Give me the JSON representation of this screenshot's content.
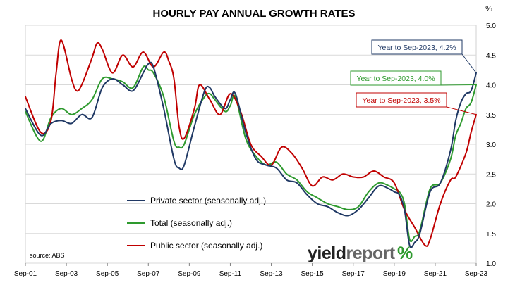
{
  "chart_data": {
    "type": "line",
    "title": "HOURLY PAY ANNUAL GROWTH RATES",
    "y_unit_label": "%",
    "ylim": [
      1.0,
      5.0
    ],
    "y_ticks": [
      "1.0",
      "1.5",
      "2.0",
      "2.5",
      "3.0",
      "3.5",
      "4.0",
      "4.5",
      "5.0"
    ],
    "x_range": [
      "2001-09",
      "2023-09"
    ],
    "x_ticks": [
      "Sep-01",
      "Sep-03",
      "Sep-05",
      "Sep-07",
      "Sep-09",
      "Sep-11",
      "Sep-13",
      "Sep-15",
      "Sep-17",
      "Sep-19",
      "Sep-21",
      "Sep-23"
    ],
    "grid": true,
    "legend_position": "bottom-center",
    "series": [
      {
        "name": "Private sector (seasonally adj.)",
        "color": "#1f3864",
        "points": [
          [
            "2001-09",
            3.6
          ],
          [
            "2002-06",
            3.15
          ],
          [
            "2002-12",
            3.35
          ],
          [
            "2003-06",
            3.4
          ],
          [
            "2003-12",
            3.35
          ],
          [
            "2004-06",
            3.5
          ],
          [
            "2004-12",
            3.45
          ],
          [
            "2005-06",
            3.95
          ],
          [
            "2005-12",
            4.1
          ],
          [
            "2006-06",
            4.0
          ],
          [
            "2006-12",
            3.9
          ],
          [
            "2007-06",
            4.2
          ],
          [
            "2007-09",
            4.35
          ],
          [
            "2007-12",
            4.3
          ],
          [
            "2008-06",
            3.6
          ],
          [
            "2008-12",
            2.75
          ],
          [
            "2009-03",
            2.6
          ],
          [
            "2009-06",
            2.65
          ],
          [
            "2009-12",
            3.3
          ],
          [
            "2010-06",
            3.9
          ],
          [
            "2010-09",
            3.95
          ],
          [
            "2010-12",
            3.8
          ],
          [
            "2011-06",
            3.6
          ],
          [
            "2011-09",
            3.75
          ],
          [
            "2011-12",
            3.85
          ],
          [
            "2012-06",
            3.2
          ],
          [
            "2012-12",
            2.75
          ],
          [
            "2013-06",
            2.65
          ],
          [
            "2013-12",
            2.6
          ],
          [
            "2014-06",
            2.4
          ],
          [
            "2014-12",
            2.35
          ],
          [
            "2015-06",
            2.15
          ],
          [
            "2015-12",
            2.0
          ],
          [
            "2016-06",
            1.95
          ],
          [
            "2016-12",
            1.85
          ],
          [
            "2017-06",
            1.8
          ],
          [
            "2017-12",
            1.9
          ],
          [
            "2018-06",
            2.1
          ],
          [
            "2018-12",
            2.3
          ],
          [
            "2019-06",
            2.25
          ],
          [
            "2019-09",
            2.2
          ],
          [
            "2019-12",
            2.15
          ],
          [
            "2020-03",
            1.9
          ],
          [
            "2020-06",
            1.3
          ],
          [
            "2020-09",
            1.35
          ],
          [
            "2020-12",
            1.5
          ],
          [
            "2021-06",
            2.2
          ],
          [
            "2021-12",
            2.35
          ],
          [
            "2022-06",
            2.9
          ],
          [
            "2022-09",
            3.4
          ],
          [
            "2022-12",
            3.7
          ],
          [
            "2023-03",
            3.85
          ],
          [
            "2023-06",
            3.9
          ],
          [
            "2023-09",
            4.2
          ]
        ]
      },
      {
        "name": "Total (seasonally adj.)",
        "color": "#2e9a2e",
        "points": [
          [
            "2001-09",
            3.55
          ],
          [
            "2002-06",
            3.05
          ],
          [
            "2002-12",
            3.45
          ],
          [
            "2003-06",
            3.6
          ],
          [
            "2003-12",
            3.5
          ],
          [
            "2004-06",
            3.6
          ],
          [
            "2004-12",
            3.75
          ],
          [
            "2005-06",
            4.1
          ],
          [
            "2005-12",
            4.1
          ],
          [
            "2006-06",
            4.05
          ],
          [
            "2006-12",
            3.95
          ],
          [
            "2007-06",
            4.3
          ],
          [
            "2007-09",
            4.25
          ],
          [
            "2007-12",
            4.2
          ],
          [
            "2008-06",
            3.8
          ],
          [
            "2008-12",
            3.05
          ],
          [
            "2009-03",
            2.95
          ],
          [
            "2009-06",
            3.0
          ],
          [
            "2009-12",
            3.5
          ],
          [
            "2010-06",
            3.8
          ],
          [
            "2010-09",
            3.85
          ],
          [
            "2010-12",
            3.75
          ],
          [
            "2011-06",
            3.55
          ],
          [
            "2011-09",
            3.65
          ],
          [
            "2011-12",
            3.8
          ],
          [
            "2012-06",
            3.1
          ],
          [
            "2012-12",
            2.8
          ],
          [
            "2013-06",
            2.65
          ],
          [
            "2013-12",
            2.7
          ],
          [
            "2014-06",
            2.5
          ],
          [
            "2014-12",
            2.4
          ],
          [
            "2015-06",
            2.2
          ],
          [
            "2015-12",
            2.1
          ],
          [
            "2016-06",
            2.0
          ],
          [
            "2016-12",
            1.95
          ],
          [
            "2017-06",
            1.9
          ],
          [
            "2017-12",
            1.95
          ],
          [
            "2018-06",
            2.2
          ],
          [
            "2018-12",
            2.35
          ],
          [
            "2019-06",
            2.3
          ],
          [
            "2019-09",
            2.25
          ],
          [
            "2019-12",
            2.2
          ],
          [
            "2020-03",
            2.0
          ],
          [
            "2020-06",
            1.4
          ],
          [
            "2020-09",
            1.45
          ],
          [
            "2020-12",
            1.55
          ],
          [
            "2021-06",
            2.25
          ],
          [
            "2021-12",
            2.35
          ],
          [
            "2022-06",
            2.75
          ],
          [
            "2022-09",
            3.15
          ],
          [
            "2022-12",
            3.35
          ],
          [
            "2023-03",
            3.6
          ],
          [
            "2023-06",
            3.7
          ],
          [
            "2023-09",
            4.0
          ]
        ]
      },
      {
        "name": "Public sector (seasonally adj.)",
        "color": "#c00000",
        "points": [
          [
            "2001-09",
            3.8
          ],
          [
            "2002-06",
            3.2
          ],
          [
            "2002-12",
            3.4
          ],
          [
            "2003-03",
            4.2
          ],
          [
            "2003-06",
            4.75
          ],
          [
            "2003-12",
            4.1
          ],
          [
            "2004-03",
            3.9
          ],
          [
            "2004-06",
            4.0
          ],
          [
            "2004-12",
            4.45
          ],
          [
            "2005-03",
            4.7
          ],
          [
            "2005-06",
            4.6
          ],
          [
            "2005-12",
            4.2
          ],
          [
            "2006-06",
            4.5
          ],
          [
            "2006-12",
            4.3
          ],
          [
            "2007-06",
            4.55
          ],
          [
            "2007-12",
            4.3
          ],
          [
            "2008-06",
            4.55
          ],
          [
            "2008-09",
            4.4
          ],
          [
            "2008-12",
            4.1
          ],
          [
            "2009-03",
            3.3
          ],
          [
            "2009-06",
            3.1
          ],
          [
            "2009-12",
            3.6
          ],
          [
            "2010-03",
            4.0
          ],
          [
            "2010-09",
            3.75
          ],
          [
            "2011-03",
            3.5
          ],
          [
            "2011-09",
            3.85
          ],
          [
            "2012-03",
            3.55
          ],
          [
            "2012-09",
            3.0
          ],
          [
            "2013-03",
            2.8
          ],
          [
            "2013-09",
            2.65
          ],
          [
            "2014-03",
            2.95
          ],
          [
            "2014-09",
            2.85
          ],
          [
            "2015-03",
            2.6
          ],
          [
            "2015-09",
            2.3
          ],
          [
            "2016-03",
            2.45
          ],
          [
            "2016-09",
            2.4
          ],
          [
            "2017-03",
            2.5
          ],
          [
            "2017-09",
            2.45
          ],
          [
            "2018-03",
            2.45
          ],
          [
            "2018-09",
            2.55
          ],
          [
            "2019-03",
            2.45
          ],
          [
            "2019-09",
            2.35
          ],
          [
            "2020-03",
            1.9
          ],
          [
            "2020-09",
            1.6
          ],
          [
            "2021-03",
            1.3
          ],
          [
            "2021-06",
            1.4
          ],
          [
            "2021-12",
            2.0
          ],
          [
            "2022-06",
            2.4
          ],
          [
            "2022-09",
            2.45
          ],
          [
            "2023-03",
            2.85
          ],
          [
            "2023-06",
            3.2
          ],
          [
            "2023-09",
            3.5
          ]
        ]
      }
    ],
    "annotations": [
      {
        "text": "Year to Sep-2023, 4.2%",
        "color": "#1f3864",
        "series": "Private sector (seasonally adj.)"
      },
      {
        "text": "Year to Sep-2023, 4.0%",
        "color": "#2e9a2e",
        "series": "Total (seasonally adj.)"
      },
      {
        "text": "Year to Sep-2023, 3.5%",
        "color": "#c00000",
        "series": "Public sector (seasonally adj.)"
      }
    ],
    "source": "source: ABS"
  },
  "logo": {
    "word_part1": "yield",
    "word_part2": "report",
    "symbol": "%"
  }
}
